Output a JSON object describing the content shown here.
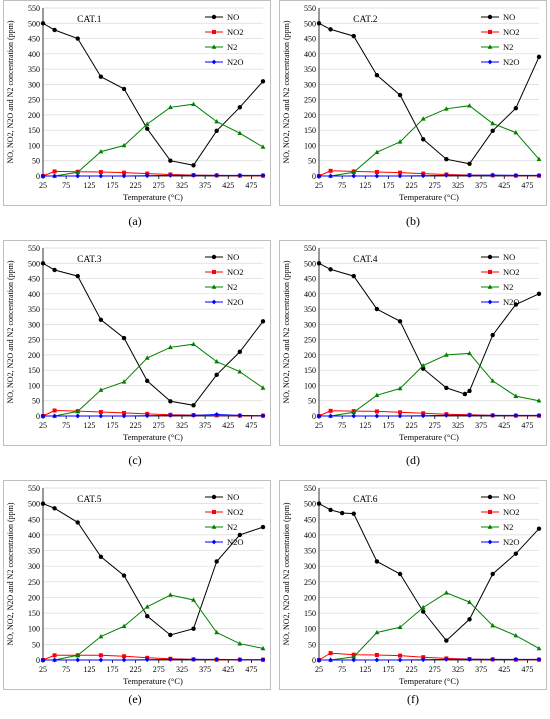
{
  "colors": {
    "NO": "#000000",
    "NO2": "#ff0000",
    "N2": "#008000",
    "N2O": "#0000ff",
    "grid": "#d9d9d9"
  },
  "chart_data": [
    {
      "type": "line",
      "title": "CAT.1",
      "panel_label": "(a)",
      "xlabel": "Temperature (°C)",
      "ylabel": "NO, NO2, N2O and N2 concentration (ppm)",
      "x_ticks": [
        25,
        75,
        125,
        175,
        225,
        275,
        325,
        375,
        425,
        475
      ],
      "y_ticks": [
        0,
        50,
        100,
        150,
        200,
        250,
        300,
        350,
        400,
        450,
        500,
        550
      ],
      "xlim": [
        25,
        500
      ],
      "ylim": [
        0,
        550
      ],
      "grid": "horizontal",
      "legend": "top-right",
      "series": [
        {
          "name": "NO",
          "x": [
            25,
            50,
            100,
            150,
            200,
            250,
            300,
            350,
            400,
            450,
            500
          ],
          "y": [
            500,
            478,
            450,
            325,
            285,
            155,
            50,
            35,
            148,
            225,
            310
          ]
        },
        {
          "name": "NO2",
          "x": [
            25,
            50,
            100,
            150,
            200,
            250,
            300,
            350,
            400,
            450,
            500
          ],
          "y": [
            0,
            15,
            14,
            13,
            11,
            8,
            5,
            3,
            2,
            1,
            1
          ]
        },
        {
          "name": "N2",
          "x": [
            25,
            50,
            100,
            150,
            200,
            250,
            300,
            350,
            400,
            450,
            500
          ],
          "y": [
            0,
            0,
            12,
            80,
            100,
            170,
            225,
            235,
            178,
            140,
            95
          ]
        },
        {
          "name": "N2O",
          "x": [
            25,
            50,
            100,
            150,
            200,
            250,
            300,
            350,
            400,
            450,
            500
          ],
          "y": [
            0,
            0,
            0,
            0,
            0,
            1,
            2,
            2,
            2,
            2,
            2
          ]
        }
      ]
    },
    {
      "type": "line",
      "title": "CAT.2",
      "panel_label": "(b)",
      "xlabel": "Temperature (°C)",
      "ylabel": "NO, NO2, N2O and N2 concentration (ppm)",
      "x_ticks": [
        25,
        75,
        125,
        175,
        225,
        275,
        325,
        375,
        425,
        475
      ],
      "y_ticks": [
        0,
        50,
        100,
        150,
        200,
        250,
        300,
        350,
        400,
        450,
        500,
        550
      ],
      "xlim": [
        25,
        500
      ],
      "ylim": [
        0,
        550
      ],
      "grid": "horizontal",
      "legend": "top-right",
      "series": [
        {
          "name": "NO",
          "x": [
            25,
            50,
            100,
            150,
            200,
            250,
            300,
            350,
            400,
            450,
            500
          ],
          "y": [
            500,
            480,
            458,
            330,
            265,
            120,
            55,
            40,
            148,
            222,
            390
          ]
        },
        {
          "name": "NO2",
          "x": [
            25,
            50,
            100,
            150,
            200,
            250,
            300,
            350,
            400,
            450,
            500
          ],
          "y": [
            0,
            17,
            15,
            13,
            11,
            8,
            5,
            3,
            2,
            1,
            1
          ]
        },
        {
          "name": "N2",
          "x": [
            25,
            50,
            100,
            150,
            200,
            250,
            300,
            350,
            400,
            450,
            500
          ],
          "y": [
            0,
            0,
            12,
            78,
            112,
            187,
            220,
            230,
            172,
            142,
            55
          ]
        },
        {
          "name": "N2O",
          "x": [
            25,
            50,
            100,
            150,
            200,
            250,
            300,
            350,
            400,
            450,
            500
          ],
          "y": [
            0,
            0,
            0,
            0,
            0,
            1,
            2,
            2,
            3,
            2,
            2
          ]
        }
      ]
    },
    {
      "type": "line",
      "title": "CAT.3",
      "panel_label": "(c)",
      "xlabel": "Temperature (°C)",
      "ylabel": "NO, NO2, N2O and N2 concentration (ppm)",
      "x_ticks": [
        25,
        75,
        125,
        175,
        225,
        275,
        325,
        375,
        425,
        475
      ],
      "y_ticks": [
        0,
        50,
        100,
        150,
        200,
        250,
        300,
        350,
        400,
        450,
        500,
        550
      ],
      "xlim": [
        25,
        500
      ],
      "ylim": [
        0,
        550
      ],
      "grid": "horizontal",
      "legend": "top-right",
      "series": [
        {
          "name": "NO",
          "x": [
            25,
            50,
            100,
            150,
            200,
            250,
            300,
            350,
            400,
            450,
            500
          ],
          "y": [
            500,
            478,
            458,
            315,
            255,
            115,
            48,
            35,
            135,
            210,
            310
          ]
        },
        {
          "name": "NO2",
          "x": [
            25,
            50,
            100,
            150,
            200,
            250,
            300,
            350,
            400,
            450,
            500
          ],
          "y": [
            0,
            18,
            16,
            13,
            10,
            7,
            4,
            3,
            2,
            1,
            1
          ]
        },
        {
          "name": "N2",
          "x": [
            25,
            50,
            100,
            150,
            200,
            250,
            300,
            350,
            400,
            450,
            500
          ],
          "y": [
            0,
            0,
            15,
            85,
            112,
            190,
            225,
            235,
            178,
            145,
            92
          ]
        },
        {
          "name": "N2O",
          "x": [
            25,
            50,
            100,
            150,
            200,
            250,
            300,
            350,
            400,
            450,
            500
          ],
          "y": [
            0,
            0,
            0,
            0,
            0,
            1,
            2,
            2,
            5,
            2,
            1
          ]
        }
      ]
    },
    {
      "type": "line",
      "title": "CAT.4",
      "panel_label": "(d)",
      "xlabel": "Temperature (°C)",
      "ylabel": "NO, NO2, N2O and N2 concentration (ppm)",
      "x_ticks": [
        25,
        75,
        125,
        175,
        225,
        275,
        325,
        375,
        425,
        475
      ],
      "y_ticks": [
        0,
        50,
        100,
        150,
        200,
        250,
        300,
        350,
        400,
        450,
        500,
        550
      ],
      "xlim": [
        25,
        500
      ],
      "ylim": [
        0,
        550
      ],
      "grid": "horizontal",
      "legend": "top-right",
      "series": [
        {
          "name": "NO",
          "x": [
            25,
            50,
            100,
            150,
            200,
            250,
            300,
            340,
            350,
            400,
            450,
            500
          ],
          "y": [
            500,
            480,
            458,
            350,
            310,
            155,
            92,
            72,
            82,
            265,
            365,
            400
          ]
        },
        {
          "name": "NO2",
          "x": [
            25,
            50,
            100,
            150,
            200,
            250,
            300,
            350,
            400,
            450,
            500
          ],
          "y": [
            0,
            17,
            16,
            15,
            12,
            9,
            6,
            4,
            2,
            1,
            1
          ]
        },
        {
          "name": "N2",
          "x": [
            25,
            50,
            100,
            150,
            200,
            250,
            300,
            350,
            400,
            450,
            500
          ],
          "y": [
            0,
            0,
            12,
            68,
            90,
            165,
            200,
            205,
            115,
            65,
            50
          ]
        },
        {
          "name": "N2O",
          "x": [
            25,
            50,
            100,
            150,
            200,
            250,
            300,
            350,
            400,
            450,
            500
          ],
          "y": [
            0,
            0,
            0,
            0,
            0,
            1,
            2,
            2,
            2,
            2,
            2
          ]
        }
      ]
    },
    {
      "type": "line",
      "title": "CAT.5",
      "panel_label": "(e)",
      "xlabel": "Temperature (°C)",
      "ylabel": "NO, NO2, N2O and N2 concentration (ppm)",
      "x_ticks": [
        25,
        75,
        125,
        175,
        225,
        275,
        325,
        375,
        425,
        475
      ],
      "y_ticks": [
        0,
        50,
        100,
        150,
        200,
        250,
        300,
        350,
        400,
        450,
        500,
        550
      ],
      "xlim": [
        25,
        500
      ],
      "ylim": [
        0,
        550
      ],
      "grid": "horizontal",
      "legend": "top-right",
      "series": [
        {
          "name": "NO",
          "x": [
            25,
            50,
            100,
            150,
            200,
            250,
            300,
            350,
            400,
            450,
            500
          ],
          "y": [
            500,
            485,
            440,
            330,
            270,
            140,
            80,
            100,
            315,
            400,
            425
          ]
        },
        {
          "name": "NO2",
          "x": [
            25,
            50,
            100,
            150,
            200,
            250,
            300,
            350,
            400,
            450,
            500
          ],
          "y": [
            0,
            15,
            15,
            15,
            12,
            7,
            4,
            2,
            1,
            1,
            1
          ]
        },
        {
          "name": "N2",
          "x": [
            25,
            50,
            100,
            150,
            200,
            250,
            300,
            350,
            400,
            450,
            500
          ],
          "y": [
            0,
            0,
            15,
            75,
            108,
            170,
            208,
            192,
            88,
            52,
            37
          ]
        },
        {
          "name": "N2O",
          "x": [
            25,
            50,
            100,
            150,
            200,
            250,
            300,
            350,
            400,
            450,
            500
          ],
          "y": [
            0,
            0,
            0,
            0,
            0,
            1,
            2,
            2,
            2,
            1,
            1
          ]
        }
      ]
    },
    {
      "type": "line",
      "title": "CAT.6",
      "panel_label": "(f)",
      "xlabel": "Temperature (°C)",
      "ylabel": "NO, NO2, N2O and N2 concentration (ppm)",
      "x_ticks": [
        25,
        75,
        125,
        175,
        225,
        275,
        325,
        375,
        425,
        475
      ],
      "y_ticks": [
        0,
        50,
        100,
        150,
        200,
        250,
        300,
        350,
        400,
        450,
        500,
        550
      ],
      "xlim": [
        25,
        500
      ],
      "ylim": [
        0,
        550
      ],
      "grid": "horizontal",
      "legend": "top-right",
      "series": [
        {
          "name": "NO",
          "x": [
            25,
            50,
            75,
            100,
            150,
            200,
            250,
            300,
            350,
            400,
            450,
            500
          ],
          "y": [
            500,
            480,
            470,
            468,
            315,
            275,
            155,
            62,
            130,
            275,
            340,
            420
          ]
        },
        {
          "name": "NO2",
          "x": [
            25,
            50,
            100,
            150,
            200,
            250,
            300,
            350,
            400,
            450,
            500
          ],
          "y": [
            0,
            22,
            17,
            16,
            14,
            9,
            5,
            3,
            2,
            1,
            1
          ]
        },
        {
          "name": "N2",
          "x": [
            25,
            50,
            100,
            150,
            200,
            250,
            300,
            350,
            400,
            450,
            500
          ],
          "y": [
            0,
            0,
            10,
            88,
            105,
            168,
            215,
            185,
            110,
            78,
            37
          ]
        },
        {
          "name": "N2O",
          "x": [
            25,
            50,
            100,
            150,
            200,
            250,
            300,
            350,
            400,
            450,
            500
          ],
          "y": [
            0,
            0,
            0,
            0,
            0,
            1,
            2,
            2,
            2,
            2,
            2
          ]
        }
      ]
    }
  ]
}
